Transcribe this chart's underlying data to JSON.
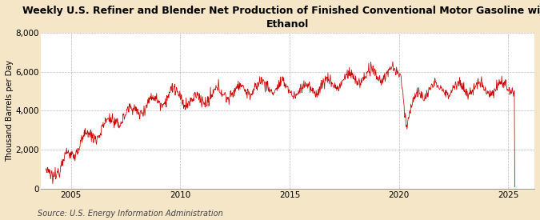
{
  "title": "Weekly U.S. Refiner and Blender Net Production of Finished Conventional Motor Gasoline with\nEthanol",
  "ylabel": "Thousand Barrels per Day",
  "source": "Source: U.S. Energy Information Administration",
  "line_color": "#CC0000",
  "background_color": "#F5E6C8",
  "plot_bg_color": "#FFFFFF",
  "ylim": [
    0,
    8000
  ],
  "yticks": [
    0,
    2000,
    4000,
    6000,
    8000
  ],
  "grid_color": "#AAAAAA",
  "grid_linestyle": "--",
  "xlim_start": 2003.6,
  "xlim_end": 2026.2,
  "xticks": [
    2005,
    2010,
    2015,
    2020,
    2025
  ],
  "title_fontsize": 9.0,
  "label_fontsize": 7.0,
  "tick_fontsize": 7.5,
  "source_fontsize": 7.0
}
